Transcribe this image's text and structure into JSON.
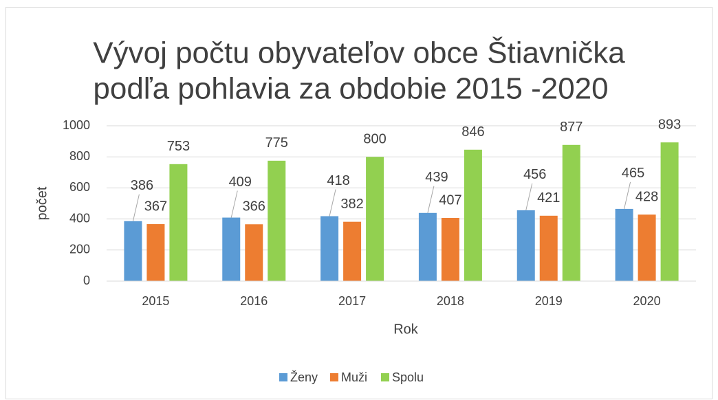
{
  "chart_data": {
    "type": "bar",
    "title": [
      "Vývoj počtu obyvateľov obce  Štiavnička",
      "podľa pohlavia za obdobie 2015 -2020"
    ],
    "x_label": "Rok",
    "y_label": "počet",
    "categories": [
      "2015",
      "2016",
      "2017",
      "2018",
      "2019",
      "2020"
    ],
    "series": [
      {
        "name": "Ženy",
        "color": "#5b9bd5",
        "values": [
          386,
          409,
          418,
          439,
          456,
          465
        ]
      },
      {
        "name": "Muži",
        "color": "#ed7d31",
        "values": [
          367,
          366,
          382,
          407,
          421,
          428
        ]
      },
      {
        "name": "Spolu",
        "color": "#92d050",
        "values": [
          753,
          775,
          800,
          846,
          877,
          893
        ]
      }
    ],
    "ylim": [
      0,
      1000
    ],
    "yticks": [
      0,
      200,
      400,
      600,
      800,
      1000
    ],
    "grid": true,
    "legend": "bottom"
  }
}
